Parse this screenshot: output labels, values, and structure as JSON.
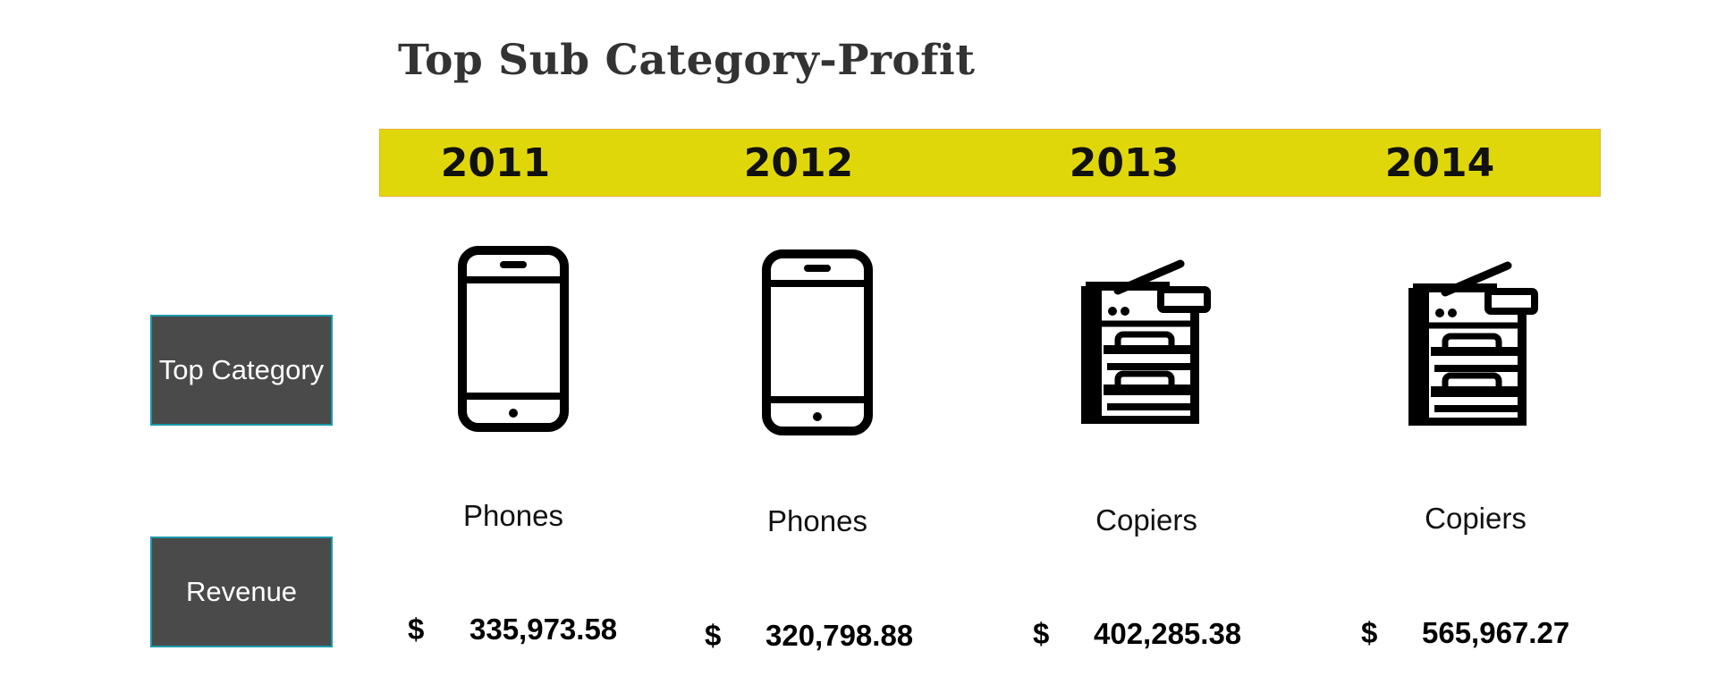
{
  "title": "Top Sub Category-Profit",
  "row_labels": {
    "top_category": "Top Category",
    "revenue": "Revenue"
  },
  "columns": [
    {
      "year": "2011",
      "category": "Phones",
      "icon": "phone-icon",
      "currency": "$",
      "revenue": "335,973.58"
    },
    {
      "year": "2012",
      "category": "Phones",
      "icon": "phone-icon",
      "currency": "$",
      "revenue": "320,798.88"
    },
    {
      "year": "2013",
      "category": "Copiers",
      "icon": "copier-icon",
      "currency": "$",
      "revenue": "402,285.38"
    },
    {
      "year": "2014",
      "category": "Copiers",
      "icon": "copier-icon",
      "currency": "$",
      "revenue": "565,967.27"
    }
  ],
  "colors": {
    "year_bar": "#e0d70b",
    "label_box": "#4a4a4a",
    "label_border": "#1b9aaa",
    "title": "#333333"
  }
}
